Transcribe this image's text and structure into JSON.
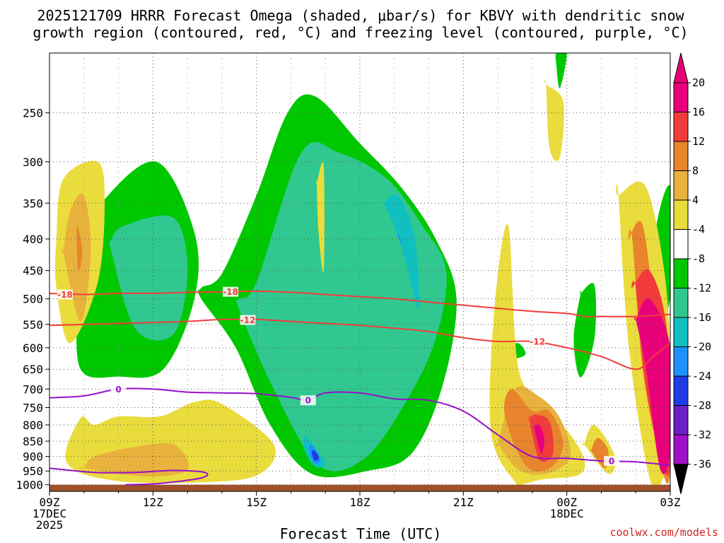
{
  "chart_data": {
    "type": "heatmap",
    "title_line1": "2025121709 HRRR Forecast Omega (shaded, μbar/s) for KBVY with dendritic snow",
    "title_line2": "growth region (contoured, red, °C) and freezing level (contoured, purple, °C)",
    "xlabel": "Forecast Time (UTC)",
    "ylabel": "",
    "x_hours": [
      0,
      3,
      6,
      9,
      12,
      15,
      18
    ],
    "x_tick_labels": [
      [
        "09Z",
        "17DEC",
        "2025"
      ],
      [
        "12Z"
      ],
      [
        "15Z"
      ],
      [
        "18Z"
      ],
      [
        "21Z"
      ],
      [
        "00Z",
        "18DEC"
      ],
      [
        "03Z"
      ]
    ],
    "xlim": [
      0,
      18
    ],
    "y_ticks": [
      1000,
      950,
      900,
      850,
      800,
      750,
      700,
      650,
      600,
      550,
      500,
      450,
      400,
      350,
      300,
      250
    ],
    "y_tick_labels": [
      "1000",
      "950",
      "900",
      "850",
      "800",
      "750",
      "700",
      "650",
      "600",
      "550",
      "500",
      "450",
      "400",
      "350",
      "300",
      "250"
    ],
    "ylim": [
      1025,
      200
    ],
    "colorbar": {
      "levels": [
        "20",
        "16",
        "12",
        "8",
        "4",
        "-4",
        "-8",
        "-12",
        "-16",
        "-20",
        "-24",
        "-28",
        "-32",
        "-36"
      ],
      "colors": [
        "#e8007a",
        "#f23c3c",
        "#e8842c",
        "#e8b23c",
        "#eadc3c",
        "#ffffff",
        "#00c800",
        "#30c890",
        "#10c0c0",
        "#1e90ff",
        "#1e3ce6",
        "#6e1ec8",
        "#a010c8",
        "#a0a0a0"
      ],
      "top_color": "#e8007a",
      "bottom_color": "#000000"
    },
    "omega_regions": [
      {
        "name": "ascent-mid-12z",
        "level": -4,
        "color": "#00c800",
        "t": [
          0.8,
          0.9,
          2.0,
          3.3,
          4.2,
          4.2,
          3.1,
          1.5,
          0.8
        ],
        "p": [
          500,
          650,
          668,
          650,
          500,
          390,
          300,
          350,
          420
        ]
      },
      {
        "name": "ascent-core-12z",
        "level": -8,
        "color": "#30c890",
        "t": [
          1.8,
          2.5,
          3.6,
          4.0,
          3.6,
          2.2,
          1.8
        ],
        "p": [
          420,
          560,
          570,
          450,
          370,
          380,
          400
        ]
      },
      {
        "name": "ascent-main-18z",
        "level": -4,
        "color": "#00c800",
        "t": [
          4.4,
          5.4,
          6.4,
          7.6,
          9.2,
          10.5,
          11.4,
          11.8,
          11.2,
          10.2,
          9.0,
          7.7,
          6.9,
          6.0,
          5.0,
          4.4
        ],
        "p": [
          500,
          600,
          800,
          960,
          950,
          890,
          690,
          500,
          400,
          330,
          280,
          235,
          250,
          340,
          455,
          480
        ]
      },
      {
        "name": "ascent-core-18z",
        "level": -8,
        "color": "#30c890",
        "t": [
          5.5,
          6.5,
          7.8,
          9.1,
          10.3,
          11.2,
          11.5,
          10.8,
          9.8,
          8.4,
          7.3,
          6.0,
          5.5
        ],
        "p": [
          520,
          700,
          930,
          910,
          740,
          580,
          450,
          380,
          320,
          290,
          290,
          470,
          500
        ]
      },
      {
        "name": "ascent-strong-20z",
        "level": -12,
        "color": "#10c0c0",
        "t": [
          9.7,
          10.2,
          10.7,
          10.6,
          10.1,
          9.7
        ],
        "p": [
          350,
          410,
          520,
          400,
          340,
          350
        ]
      },
      {
        "name": "ascent-max-20z",
        "level": -16,
        "color": "#1e90ff",
        "t": [
          10.1,
          10.25,
          10.3,
          10.15,
          10.1
        ],
        "p": [
          395,
          415,
          430,
          395,
          395
        ]
      },
      {
        "name": "ascent-low-17z",
        "level": -12,
        "color": "#10c0c0",
        "t": [
          7.4,
          7.7,
          8.0,
          7.7,
          7.4
        ],
        "p": [
          835,
          870,
          925,
          935,
          880
        ]
      },
      {
        "name": "ascent-low-core-17z",
        "level": -16,
        "color": "#1e90ff",
        "t": [
          7.55,
          7.7,
          7.85,
          7.7,
          7.55
        ],
        "p": [
          860,
          875,
          915,
          925,
          890
        ]
      },
      {
        "name": "ascent-low-max-17z",
        "level": -20,
        "color": "#1e3ce6",
        "t": [
          7.62,
          7.72,
          7.82,
          7.7,
          7.62
        ],
        "p": [
          880,
          885,
          905,
          915,
          895
        ]
      },
      {
        "name": "ascent-top-22z",
        "level": -4,
        "color": "#00c800",
        "t": [
          14.7,
          15.0,
          14.8,
          14.7
        ],
        "p": [
          200,
          200,
          228,
          210
        ]
      },
      {
        "name": "ascent-23z",
        "level": -4,
        "color": "#00c800",
        "t": [
          13.3,
          13.6,
          13.8,
          13.4,
          13.3
        ],
        "p": [
          600,
          590,
          615,
          625,
          605
        ]
      },
      {
        "name": "ascent-01z",
        "level": -4,
        "color": "#00c800",
        "t": [
          15.4,
          15.8,
          15.8,
          15.4,
          15.2,
          15.4
        ],
        "p": [
          490,
          475,
          580,
          670,
          580,
          490
        ]
      },
      {
        "name": "ascent-03z",
        "level": -8,
        "color": "#00c800",
        "t": [
          17.6,
          18.0,
          18.0,
          17.8,
          17.6
        ],
        "p": [
          380,
          330,
          490,
          520,
          460
        ]
      },
      {
        "name": "descent-10z",
        "level": 4,
        "color": "#eadc3c",
        "t": [
          0.2,
          0.6,
          1.4,
          1.6,
          1.4,
          0.4,
          0.2
        ],
        "p": [
          480,
          590,
          470,
          350,
          300,
          320,
          400
        ]
      },
      {
        "name": "descent-10z-core",
        "level": 8,
        "color": "#e8b23c",
        "t": [
          0.4,
          0.9,
          1.2,
          1.0,
          0.6,
          0.4
        ],
        "p": [
          420,
          545,
          420,
          340,
          360,
          420
        ]
      },
      {
        "name": "descent-10z-max",
        "level": 12,
        "color": "#e8842c",
        "t": [
          0.8,
          0.95,
          0.85,
          0.8
        ],
        "p": [
          380,
          420,
          450,
          420
        ]
      },
      {
        "name": "descent-low-12z",
        "level": 4,
        "color": "#eadc3c",
        "t": [
          0.5,
          1.9,
          4.6,
          6.1,
          6.5,
          5.0,
          4.2,
          3.2,
          2.0,
          1.3,
          0.9
        ],
        "p": [
          920,
          985,
          990,
          960,
          860,
          740,
          735,
          775,
          775,
          800,
          780
        ]
      },
      {
        "name": "descent-low-12z-core",
        "level": 8,
        "color": "#e8b23c",
        "t": [
          1.0,
          2.8,
          4.0,
          3.6,
          2.4,
          1.3,
          1.0
        ],
        "p": [
          940,
          970,
          945,
          860,
          870,
          900,
          940
        ]
      },
      {
        "name": "descent-17z-top",
        "level": 4,
        "color": "#eadc3c",
        "t": [
          7.75,
          7.95,
          7.95,
          7.8,
          7.75
        ],
        "p": [
          325,
          305,
          450,
          390,
          325
        ]
      },
      {
        "name": "descent-22z",
        "level": 4,
        "color": "#eadc3c",
        "t": [
          12.8,
          13.5,
          13.8,
          14.3,
          15.4,
          15.4,
          14.4,
          13.6,
          13.3,
          12.9
        ],
        "p": [
          820,
          990,
          995,
          980,
          960,
          880,
          740,
          650,
          380,
          520
        ]
      },
      {
        "name": "descent-22z-core",
        "level": 8,
        "color": "#e8b23c",
        "t": [
          13.0,
          13.6,
          14.4,
          15.1,
          14.8,
          14.2,
          13.5,
          13.0
        ],
        "p": [
          860,
          945,
          960,
          900,
          780,
          720,
          700,
          860
        ]
      },
      {
        "name": "descent-23z-core",
        "level": 12,
        "color": "#e8842c",
        "t": [
          13.2,
          13.8,
          14.5,
          14.9,
          14.5,
          14.0,
          13.4
        ],
        "p": [
          770,
          930,
          940,
          860,
          760,
          760,
          700
        ]
      },
      {
        "name": "descent-23z-max",
        "level": 16,
        "color": "#f23c3c",
        "t": [
          13.9,
          14.2,
          14.6,
          14.5,
          14.1,
          13.9
        ],
        "p": [
          780,
          910,
          890,
          790,
          770,
          780
        ]
      },
      {
        "name": "descent-23z-peak",
        "level": 20,
        "color": "#e8007a",
        "t": [
          14.05,
          14.25,
          14.35,
          14.2,
          14.05
        ],
        "p": [
          805,
          890,
          840,
          800,
          805
        ]
      },
      {
        "name": "descent-23z-top",
        "level": 4,
        "color": "#eadc3c",
        "t": [
          14.4,
          14.9,
          14.8,
          14.5,
          14.4
        ],
        "p": [
          225,
          240,
          295,
          285,
          225
        ]
      },
      {
        "name": "descent-01z",
        "level": 4,
        "color": "#eadc3c",
        "t": [
          15.5,
          16.2,
          16.4,
          15.8,
          15.5
        ],
        "p": [
          860,
          960,
          900,
          800,
          860
        ]
      },
      {
        "name": "descent-01z-core",
        "level": 8,
        "color": "#e8842c",
        "t": [
          15.7,
          16.1,
          16.2,
          15.9,
          15.7
        ],
        "p": [
          880,
          940,
          880,
          840,
          880
        ]
      },
      {
        "name": "descent-02z",
        "level": 4,
        "color": "#eadc3c",
        "t": [
          16.5,
          17.3,
          17.9,
          18.0,
          17.8,
          17.4,
          16.8,
          16.5
        ],
        "p": [
          340,
          330,
          490,
          820,
          975,
          975,
          600,
          340
        ]
      },
      {
        "name": "descent-02z-core",
        "level": 8,
        "color": "#e8842c",
        "t": [
          16.8,
          17.2,
          17.6,
          18.0,
          18.0,
          17.8,
          17.2,
          16.9
        ],
        "p": [
          400,
          380,
          550,
          720,
          950,
          960,
          650,
          400
        ]
      },
      {
        "name": "descent-02z-max",
        "level": 12,
        "color": "#f23c3c",
        "t": [
          16.9,
          17.4,
          17.9,
          18.0,
          17.8,
          17.3,
          17.0
        ],
        "p": [
          480,
          450,
          560,
          900,
          940,
          700,
          480
        ]
      },
      {
        "name": "descent-02z-peak",
        "level": 20,
        "color": "#e8007a",
        "t": [
          17.0,
          17.4,
          18.0,
          18.0,
          17.7,
          17.3,
          17.0
        ],
        "p": [
          540,
          500,
          600,
          880,
          940,
          650,
          540
        ]
      }
    ],
    "contours_dgz": [
      {
        "label": "-18",
        "color": "#f23c3c",
        "t": [
          0,
          1,
          2,
          3,
          4,
          5,
          6,
          7,
          8,
          9,
          10,
          11,
          12,
          13,
          14,
          15,
          15.5,
          16,
          17,
          18
        ],
        "p": [
          490,
          492,
          490,
          490,
          488,
          487,
          486,
          488,
          492,
          496,
          500,
          506,
          512,
          518,
          524,
          528,
          534,
          534,
          534,
          530
        ],
        "label_positions": [
          [
            0.45,
            492
          ],
          [
            5.25,
            487
          ]
        ]
      },
      {
        "label": "-12",
        "color": "#f23c3c",
        "t": [
          0,
          1,
          2,
          3,
          4,
          5,
          6,
          7,
          8,
          9,
          10,
          11,
          12,
          13,
          14,
          15,
          16,
          17,
          17.5,
          18
        ],
        "p": [
          552,
          550,
          548,
          546,
          544,
          540,
          540,
          544,
          548,
          552,
          558,
          565,
          578,
          586,
          586,
          600,
          620,
          650,
          620,
          590
        ],
        "label_positions": [
          [
            5.75,
            541
          ],
          [
            14.15,
            586
          ]
        ]
      }
    ],
    "contours_freezing": [
      {
        "label": "0",
        "color": "#9610c8",
        "t": [
          0,
          1,
          2,
          3,
          4,
          5,
          6,
          7,
          7.5,
          8,
          9,
          10,
          11,
          12,
          13,
          14,
          15,
          16,
          17,
          18
        ],
        "p": [
          723,
          718,
          700,
          700,
          708,
          710,
          712,
          722,
          730,
          710,
          710,
          726,
          730,
          760,
          830,
          900,
          906,
          915,
          918,
          930
        ],
        "label_positions": [
          [
            2.0,
            700
          ],
          [
            7.5,
            730
          ],
          [
            16.3,
            915
          ]
        ]
      },
      {
        "label": "0",
        "color": "#9610c8",
        "t": [
          0,
          1.3,
          2.5,
          3.6,
          4.5,
          4.4,
          3.2,
          2.2
        ],
        "p": [
          940,
          955,
          955,
          948,
          955,
          975,
          995,
          1000
        ],
        "label_positions": []
      }
    ],
    "ground_pressure_range": [
      1000,
      1025
    ],
    "ground_color": "#a0502a",
    "credit": "coolwx.com/models"
  }
}
